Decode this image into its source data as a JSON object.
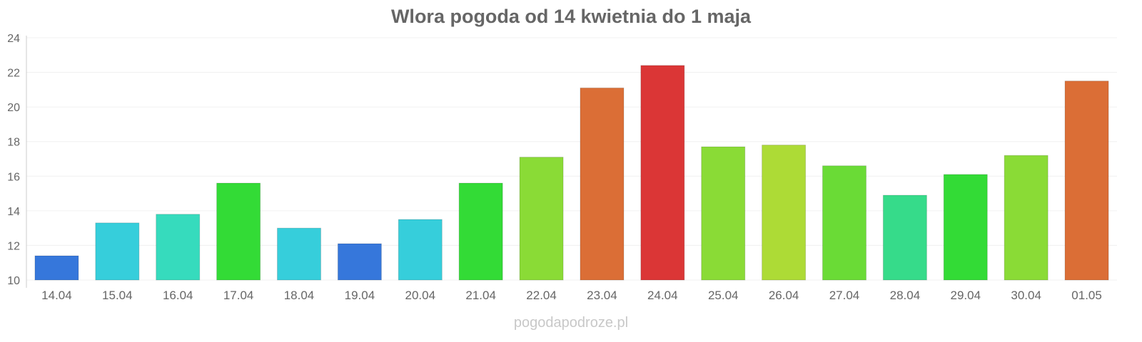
{
  "chart_data": {
    "type": "bar",
    "title": "Wlora pogoda od 14 kwietnia do 1 maja",
    "xlabel": "",
    "ylabel": "",
    "ylim": [
      10,
      24
    ],
    "yticks": [
      "10",
      "12",
      "14",
      "16",
      "18",
      "20",
      "22",
      "24"
    ],
    "grid": true,
    "categories": [
      "14.04",
      "15.04",
      "16.04",
      "17.04",
      "18.04",
      "19.04",
      "20.04",
      "21.04",
      "22.04",
      "23.04",
      "24.04",
      "25.04",
      "26.04",
      "27.04",
      "28.04",
      "29.04",
      "30.04",
      "01.05"
    ],
    "values": [
      11.4,
      13.3,
      13.8,
      15.6,
      13.0,
      12.1,
      13.5,
      15.6,
      17.1,
      21.1,
      22.4,
      17.7,
      17.8,
      16.6,
      14.9,
      16.1,
      17.2,
      21.5
    ],
    "colors": [
      "#3677db",
      "#36cedb",
      "#36dbbd",
      "#33db36",
      "#36cedb",
      "#3677db",
      "#36cedb",
      "#33db36",
      "#8adb36",
      "#db6e36",
      "#db3636",
      "#8adb36",
      "#addb36",
      "#6adb36",
      "#36db8a",
      "#33db36",
      "#8adb36",
      "#db6e36"
    ]
  },
  "footer": "pogodapodroze.pl"
}
